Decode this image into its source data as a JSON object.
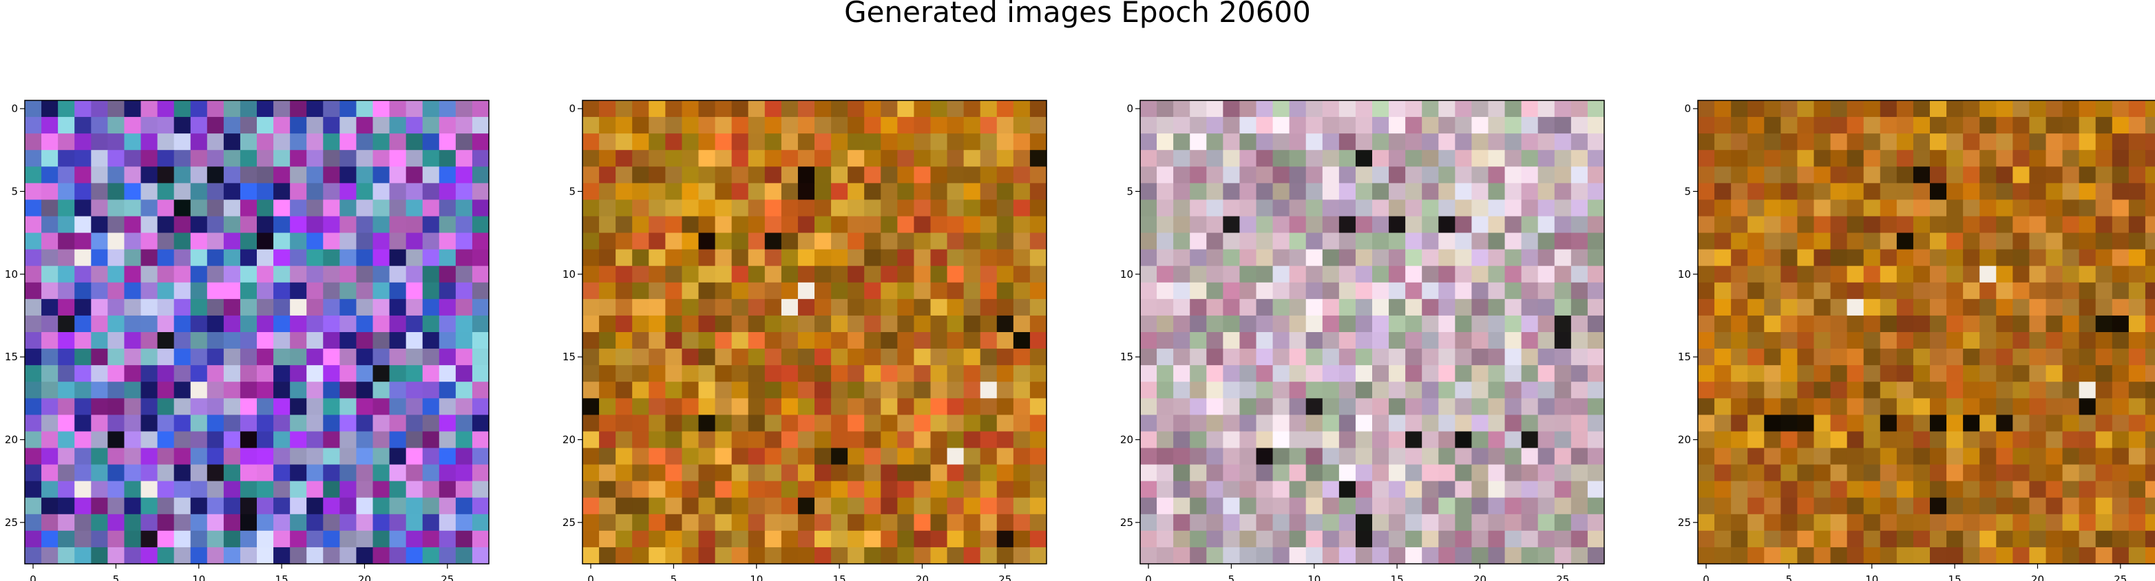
{
  "title": "Generated images Epoch 20600",
  "chart_data": [
    {
      "type": "heatmap",
      "title": "",
      "xlabel": "",
      "ylabel": "",
      "xlim": [
        -0.5,
        27.5
      ],
      "ylim": [
        27.5,
        -0.5
      ],
      "xticks": [
        0,
        5,
        10,
        15,
        20,
        25
      ],
      "yticks": [
        0,
        5,
        10,
        15,
        20,
        25
      ],
      "grid": false,
      "rows": 28,
      "cols": 28,
      "palette": [
        "#6e6fd0",
        "#8a5ce0",
        "#3b3bb5",
        "#a07ad8",
        "#5f84d4",
        "#7ec0c8",
        "#1a1a70",
        "#9b2fe0",
        "#c88ad8",
        "#d070d0",
        "#4aa0b8",
        "#b0b0d8",
        "#2c8c8c",
        "#e878e8",
        "#7f6fa0",
        "#3060e0",
        "#c0c8e8",
        "#902090"
      ],
      "dark_cells": [
        [
          4,
          8
        ],
        [
          4,
          11
        ],
        [
          6,
          9
        ],
        [
          8,
          14
        ],
        [
          13,
          2
        ],
        [
          14,
          8
        ],
        [
          16,
          21
        ],
        [
          20,
          5
        ],
        [
          20,
          13
        ],
        [
          22,
          11
        ],
        [
          24,
          13
        ],
        [
          25,
          13
        ],
        [
          26,
          7
        ]
      ],
      "light_cells": [
        [
          8,
          5
        ],
        [
          9,
          3
        ],
        [
          17,
          10
        ],
        [
          23,
          7
        ],
        [
          23,
          3
        ],
        [
          12,
          16
        ]
      ],
      "seed": 11
    },
    {
      "type": "heatmap",
      "title": "",
      "xlabel": "",
      "ylabel": "",
      "xlim": [
        -0.5,
        27.5
      ],
      "ylim": [
        27.5,
        -0.5
      ],
      "xticks": [
        0,
        5,
        10,
        15,
        20,
        25
      ],
      "yticks": [
        0,
        5,
        10,
        15,
        20,
        25
      ],
      "grid": false,
      "rows": 28,
      "cols": 28,
      "palette": [
        "#c8860a",
        "#b86a08",
        "#d09a20",
        "#a85a10",
        "#c87828",
        "#e0a040",
        "#9a7a10",
        "#c05818",
        "#d4a838",
        "#a07020",
        "#e06830",
        "#b84020",
        "#8a5a10",
        "#c89038"
      ],
      "dark_cells": [
        [
          4,
          13
        ],
        [
          5,
          13
        ],
        [
          8,
          7
        ],
        [
          8,
          11
        ],
        [
          13,
          25
        ],
        [
          18,
          0
        ],
        [
          19,
          7
        ],
        [
          21,
          15
        ],
        [
          24,
          13
        ],
        [
          26,
          25
        ],
        [
          3,
          27
        ],
        [
          14,
          26
        ]
      ],
      "light_cells": [
        [
          11,
          13
        ],
        [
          12,
          12
        ],
        [
          17,
          24
        ],
        [
          21,
          22
        ]
      ],
      "seed": 23
    },
    {
      "type": "heatmap",
      "title": "",
      "xlabel": "",
      "ylabel": "",
      "xlim": [
        -0.5,
        27.5
      ],
      "ylim": [
        27.5,
        -0.5
      ],
      "xticks": [
        0,
        5,
        10,
        15,
        20,
        25
      ],
      "yticks": [
        0,
        5,
        10,
        15,
        20,
        25
      ],
      "grid": false,
      "rows": 28,
      "cols": 28,
      "palette": [
        "#d8b8c8",
        "#e0c8d8",
        "#c8a8b8",
        "#b890a8",
        "#e8d8e0",
        "#a8c0a0",
        "#c0a8d0",
        "#d0c0a8",
        "#b87898",
        "#98a890",
        "#e0b0c0",
        "#c8c8d8",
        "#a890b0",
        "#d8d0c0"
      ],
      "dark_cells": [
        [
          3,
          13
        ],
        [
          7,
          12
        ],
        [
          7,
          5
        ],
        [
          7,
          15
        ],
        [
          7,
          18
        ],
        [
          13,
          25
        ],
        [
          14,
          25
        ],
        [
          18,
          10
        ],
        [
          20,
          16
        ],
        [
          20,
          19
        ],
        [
          20,
          23
        ],
        [
          23,
          12
        ],
        [
          25,
          13
        ],
        [
          26,
          13
        ],
        [
          21,
          7
        ]
      ],
      "light_cells": [
        [
          12,
          14
        ],
        [
          13,
          10
        ],
        [
          16,
          13
        ],
        [
          23,
          21
        ],
        [
          22,
          15
        ]
      ],
      "seed": 37
    },
    {
      "type": "heatmap",
      "title": "",
      "xlabel": "",
      "ylabel": "",
      "xlim": [
        -0.5,
        27.5
      ],
      "ylim": [
        27.5,
        -0.5
      ],
      "xticks": [
        0,
        5,
        10,
        15,
        20,
        25
      ],
      "yticks": [
        0,
        5,
        10,
        15,
        20,
        25
      ],
      "grid": false,
      "rows": 28,
      "cols": 28,
      "palette": [
        "#c8860a",
        "#b86a08",
        "#a85a10",
        "#c07020",
        "#d09a20",
        "#9a6010",
        "#b85818",
        "#c89038",
        "#8a5a10",
        "#a07020",
        "#d08030",
        "#a04818"
      ],
      "dark_cells": [
        [
          4,
          13
        ],
        [
          5,
          14
        ],
        [
          8,
          12
        ],
        [
          13,
          24
        ],
        [
          13,
          25
        ],
        [
          19,
          4
        ],
        [
          19,
          5
        ],
        [
          19,
          6
        ],
        [
          19,
          11
        ],
        [
          19,
          14
        ],
        [
          19,
          16
        ],
        [
          19,
          18
        ],
        [
          24,
          14
        ],
        [
          18,
          23
        ]
      ],
      "light_cells": [
        [
          17,
          23
        ],
        [
          10,
          17
        ],
        [
          12,
          9
        ]
      ],
      "seed": 53
    }
  ]
}
